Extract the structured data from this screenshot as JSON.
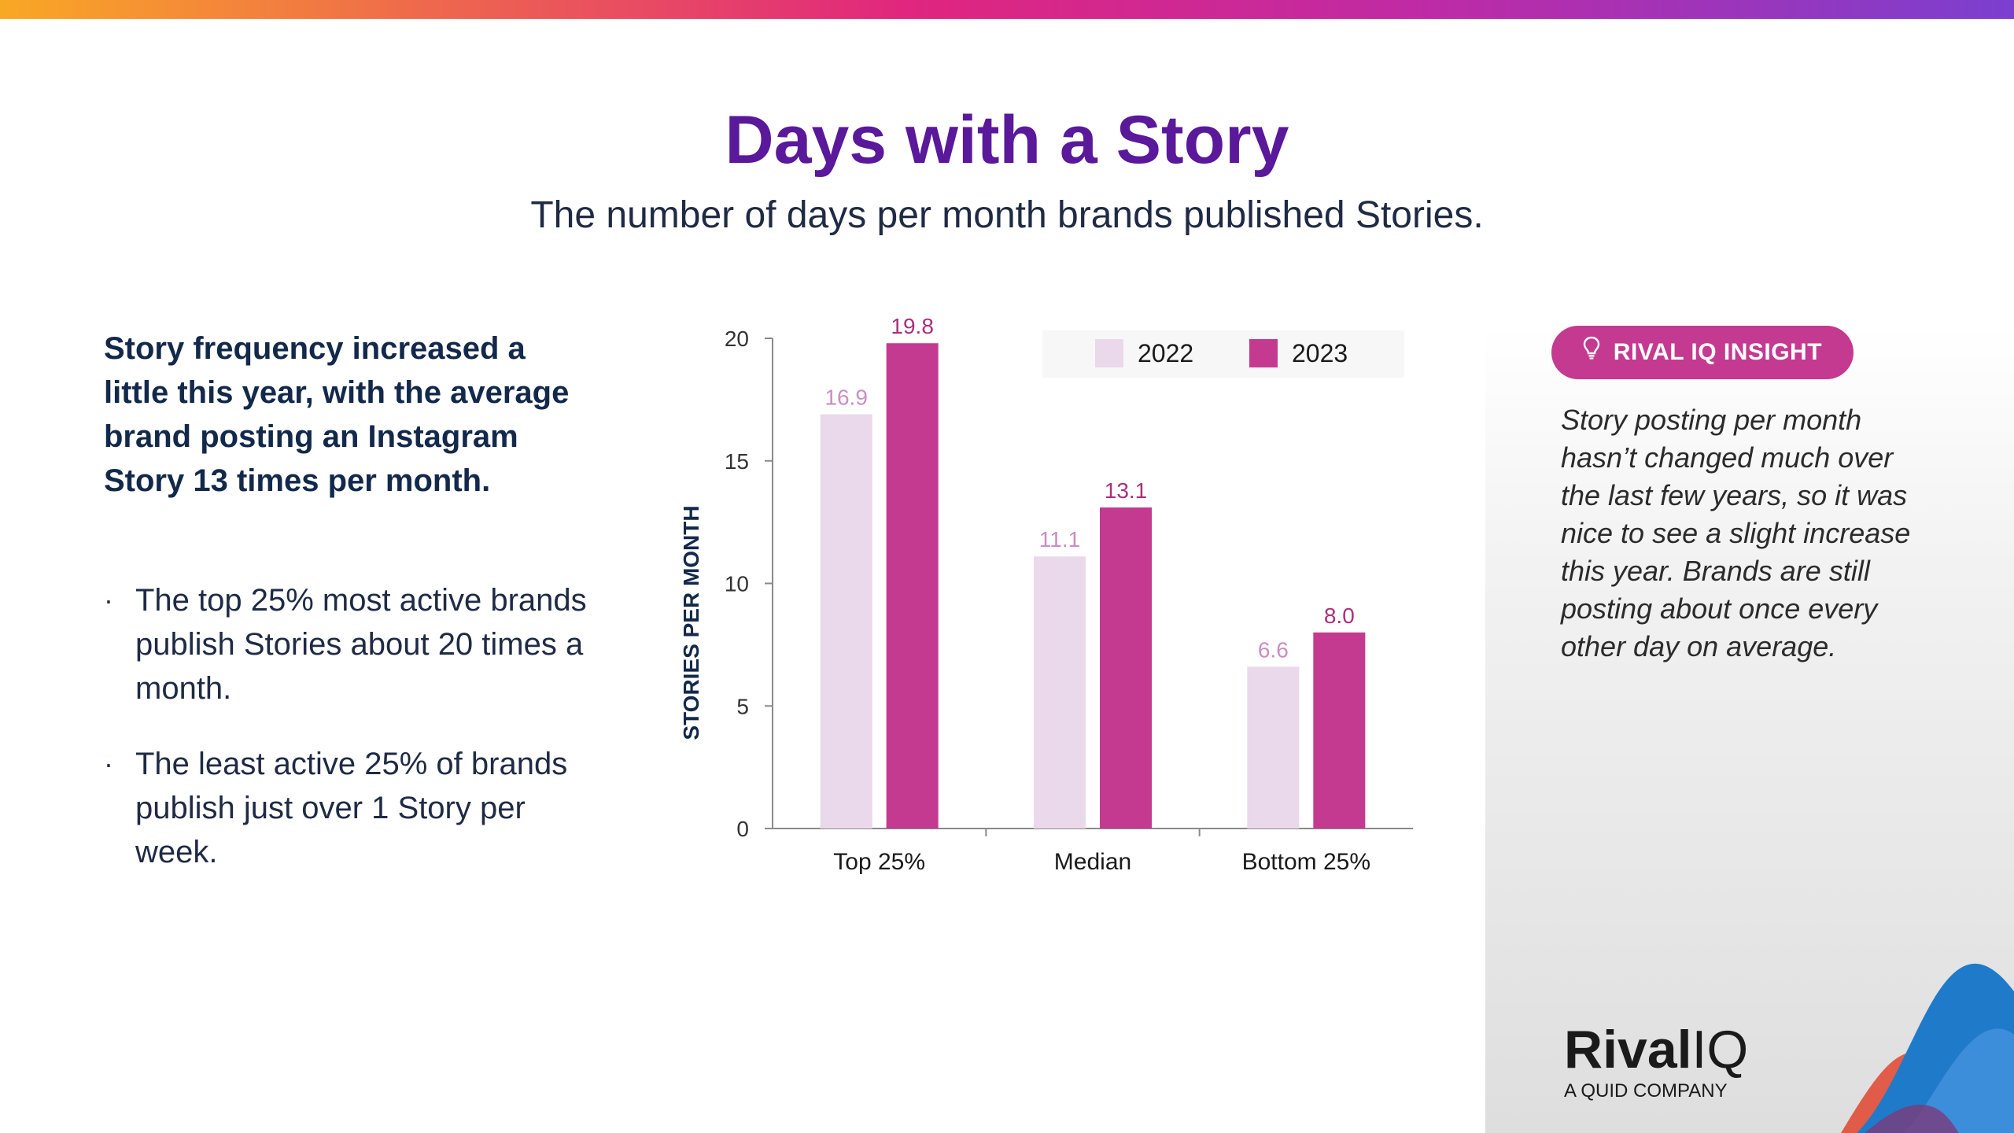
{
  "header": {
    "title": "Days with a Story",
    "subtitle": "The number of days per month brands published Stories."
  },
  "left": {
    "lead": "Story frequency increased a little this year, with the average brand posting an Instagram Story 13 times per month.",
    "bullet_symbol": "·",
    "bullets": [
      "The top 25% most active brands publish Stories about 20 times a month.",
      "The least active 25% of brands publish just over 1 Story per week."
    ]
  },
  "insight": {
    "badge": "RIVAL IQ INSIGHT",
    "badge_icon": "lightbulb-icon",
    "text": "Story posting per month hasn’t changed much over the last few years, so it was nice to see a slight increase this year. Brands are still posting about once every other day on average."
  },
  "logo": {
    "name_bold": "Rival",
    "name_light": "IQ",
    "tagline": "A QUID COMPANY"
  },
  "chart_data": {
    "type": "bar",
    "categories": [
      "Top 25%",
      "Median",
      "Bottom 25%"
    ],
    "series": [
      {
        "name": "2022",
        "values": [
          16.9,
          11.1,
          6.6
        ],
        "labels": [
          "16.9",
          "11.1",
          "6.6"
        ],
        "color": "#ead9ea",
        "label_color": "#c98ec2"
      },
      {
        "name": "2023",
        "values": [
          19.8,
          13.1,
          8.0
        ],
        "labels": [
          "19.8",
          "13.1",
          "8.0"
        ],
        "color": "#c43a90",
        "label_color": "#a8307a"
      }
    ],
    "ylabel": "STORIES PER MONTH",
    "xlabel": "",
    "ylim": [
      0,
      20
    ],
    "yticks": [
      0,
      5,
      10,
      15,
      20
    ],
    "legend_position": "top-right"
  },
  "colors": {
    "title": "#5a189a",
    "accent": "#c43a90",
    "text_dark": "#13294b"
  }
}
